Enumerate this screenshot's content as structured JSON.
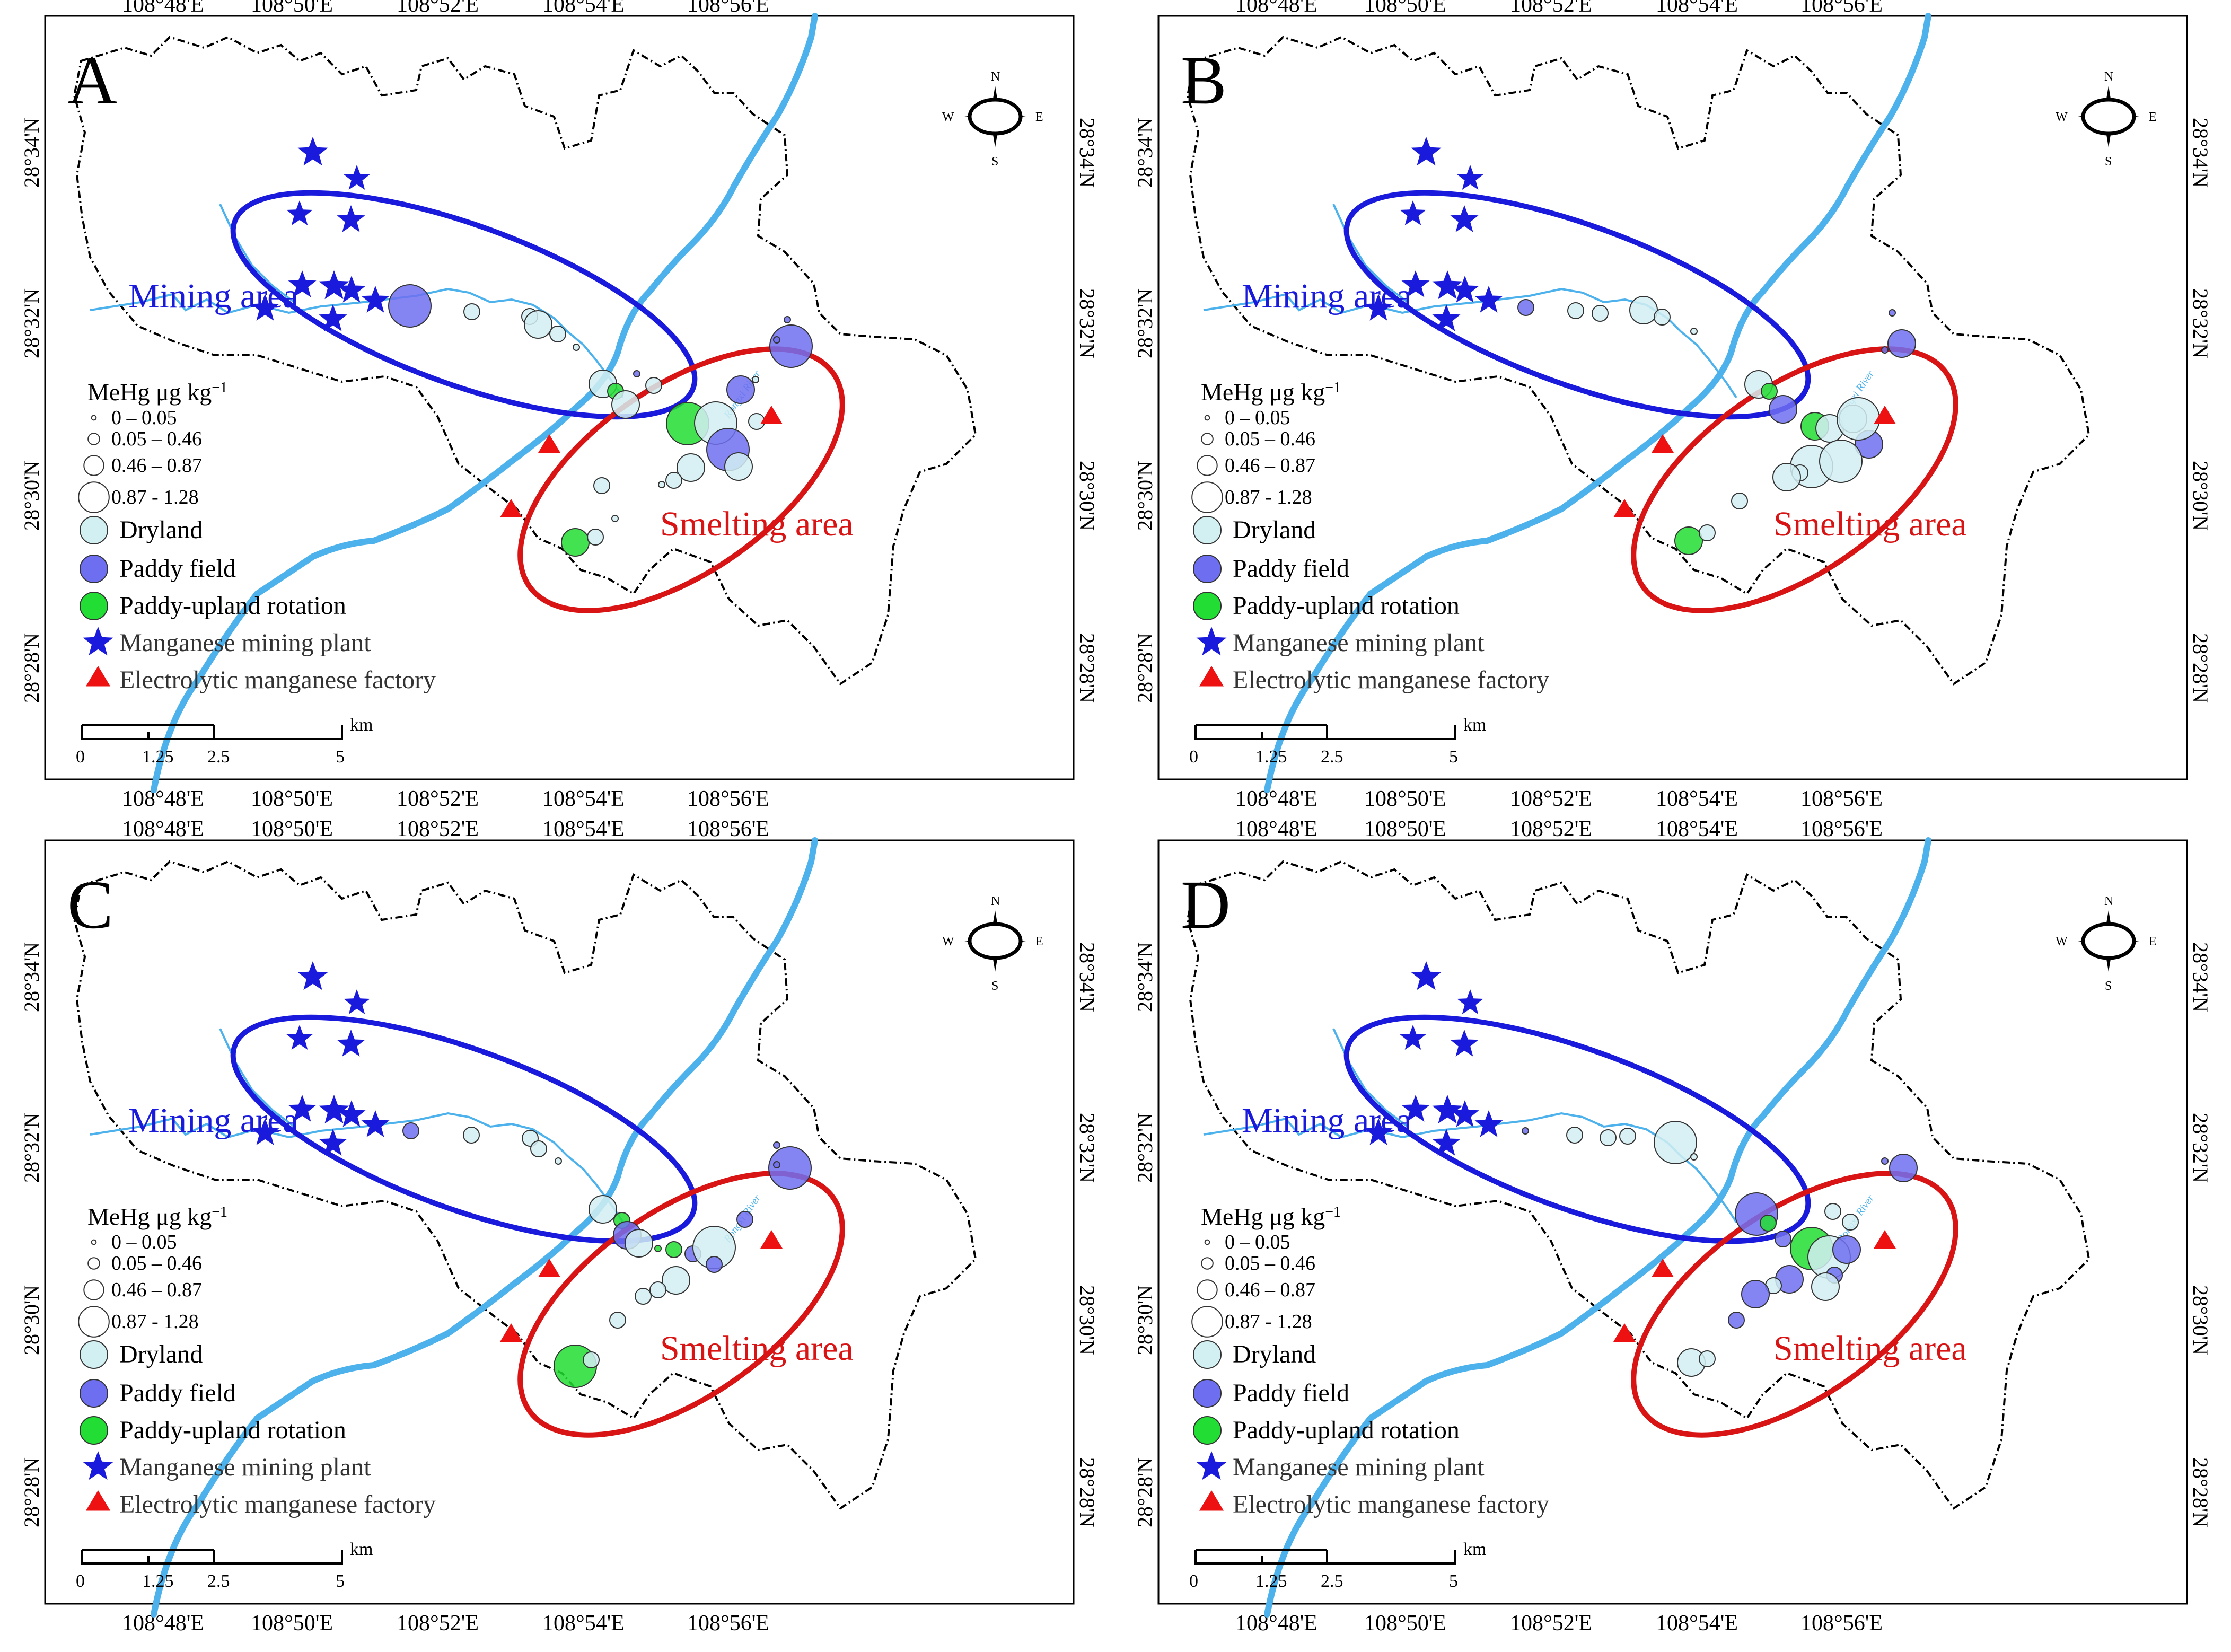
{
  "colors": {
    "river": "#4db2ec",
    "boundary": "#000000",
    "mining_ellipse": "#1a1adc",
    "smelting_ellipse": "#d91414",
    "dryland": "#d2eff2",
    "paddy": "#6e6ef0",
    "rotation": "#22dd33",
    "star": "#1a1adc",
    "triangle": "#ee1111"
  },
  "axes": {
    "lon_ticks": [
      "108°48'E",
      "108°50'E",
      "108°52'E",
      "108°54'E",
      "108°56'E"
    ],
    "lat_ticks": [
      "28°34'N",
      "28°32'N",
      "28°30'N",
      "28°28'N"
    ]
  },
  "annotations": {
    "mining_area": "Mining area",
    "smelting_area": "Smelting area",
    "river_label": "Rongxi River"
  },
  "compass": {
    "n": "N",
    "s": "S",
    "e": "E",
    "w": "W"
  },
  "legend": {
    "title": "MeHg μg kg",
    "title_sup": "−1",
    "size_classes": [
      "0 – 0.05",
      "0.05 – 0.46",
      "0.46 – 0.87",
      "0.87  - 1.28"
    ],
    "dryland": "Dryland",
    "paddy": "Paddy field",
    "rotation": "Paddy-upland rotation",
    "mining_plant": "Manganese mining plant",
    "factory": "Electrolytic  manganese factory"
  },
  "scale_bar": {
    "unit": "km",
    "ticks": [
      "0",
      "1.25",
      "2.5",
      "5"
    ]
  },
  "panels": [
    {
      "label": "A"
    },
    {
      "label": "B"
    },
    {
      "label": "C"
    },
    {
      "label": "D"
    }
  ]
}
